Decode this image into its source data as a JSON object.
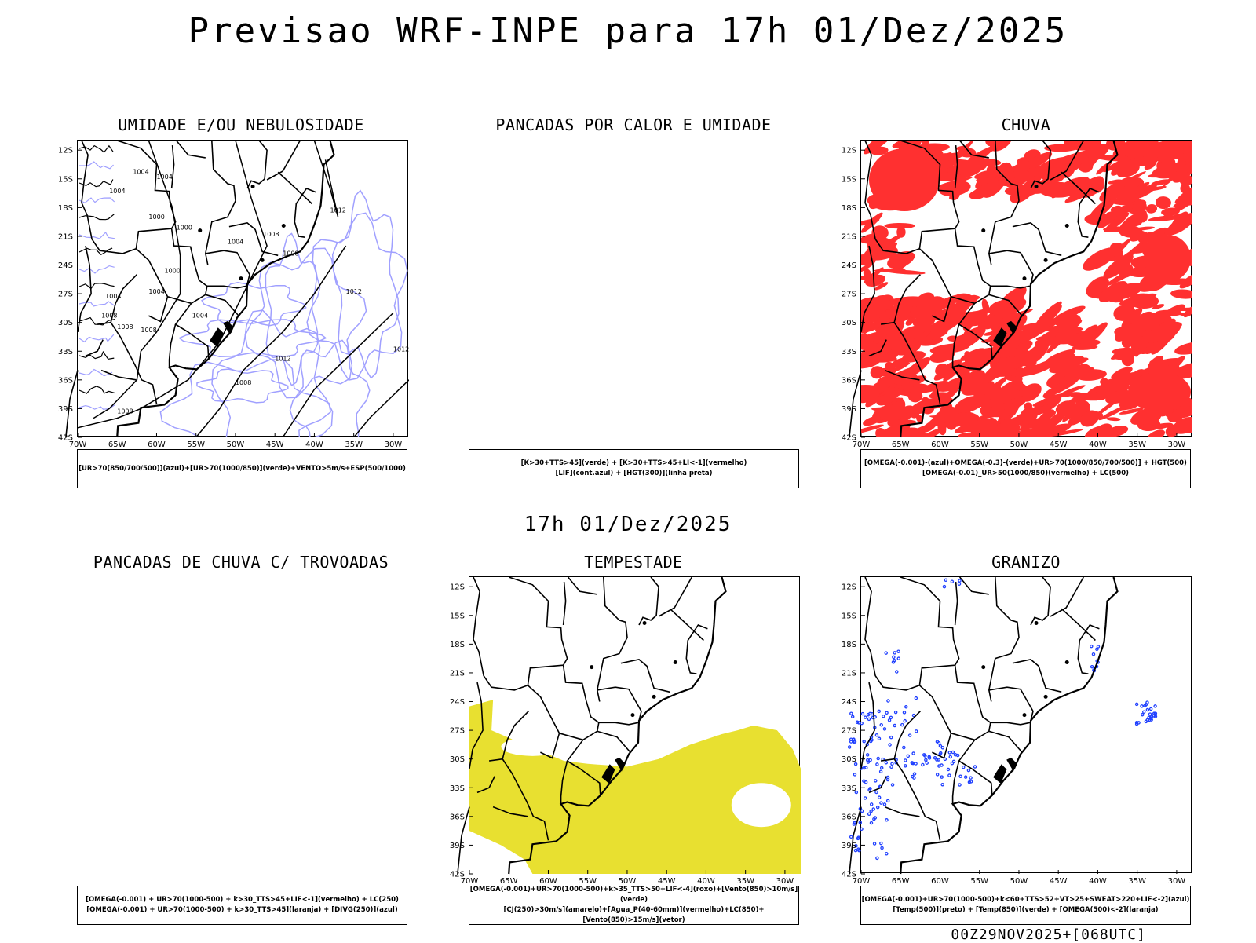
{
  "main_title": "Previsao WRF-INPE  para 17h 01/Dez/2025",
  "center_time": "17h 01/Dez/2025",
  "footer_stamp": "00Z29NOV2025+[068UTC]",
  "axes": {
    "lat_labels": [
      "12S",
      "15S",
      "18S",
      "21S",
      "24S",
      "27S",
      "30S",
      "33S",
      "36S",
      "39S",
      "42S"
    ],
    "lon_labels": [
      "70W",
      "65W",
      "60W",
      "55W",
      "50W",
      "45W",
      "40W",
      "35W",
      "30W"
    ]
  },
  "colors": {
    "pressure_contour": "#000000",
    "humidity_contour": "#a0a0ff",
    "rain": "#ff3030",
    "storm": "#e8e030",
    "hail": "#2040ff"
  },
  "isobar_labels": [
    "1004",
    "1004",
    "1004",
    "1000",
    "1000",
    "1004",
    "1008",
    "1008",
    "1012",
    "1000",
    "1004",
    "1008",
    "1008",
    "1004",
    "1008",
    "1008",
    "1012",
    "1012",
    "1012",
    "1004",
    "1008"
  ],
  "panels": {
    "umidade": {
      "title": "UMIDADE E/OU NEBULOSIDADE",
      "legend": [
        "[UR>70(850/700/500)](azul)+[UR>70(1000/850)](verde)+VENTO>5m/s+ESP(500/1000)"
      ]
    },
    "pancadas_calor": {
      "title": "PANCADAS POR CALOR E UMIDADE",
      "legend": [
        "[K>30+TTS>45](verde) + [K>30+TTS>45+LI<-1](vermelho)",
        "[LIF](cont.azul) + [HGT(300)](linha preta)"
      ]
    },
    "chuva": {
      "title": "CHUVA",
      "legend": [
        "[OMEGA(-0.001)-(azul)+OMEGA(-0.3)-(verde)+UR>70(1000/850/700/500)] + HGT(500)",
        "[OMEGA(-0.01)_UR>50(1000/850)(vermelho) + LC(500)"
      ]
    },
    "trovoadas": {
      "title": "PANCADAS DE CHUVA C/ TROVOADAS",
      "legend": [
        "[OMEGA(-0.001) + UR>70(1000-500) + k>30_TTS>45+LIF<-1](vermelho) + LC(250)",
        "[OMEGA(-0.001) + UR>70(1000-500) + k>30_TTS>45](laranja) + [DIVG(250)](azul)"
      ]
    },
    "tempestade": {
      "title": "TEMPESTADE",
      "legend": [
        "[OMEGA(-0.001)+UR>70(1000-500)+k>35_TTS>50+LIF<-4](roxo)+[Vento(850)>10m/s](verde)",
        "[CJ(250)>30m/s](amarelo)+[Agua_P(40-60mm)](vermelho)+LC(850)+[Vento(850)>15m/s](vetor)"
      ]
    },
    "granizo": {
      "title": "GRANIZO",
      "legend": [
        "[OMEGA(-0.001)+UR>70(1000-500)+k<60+TTS>52+VT>25+SWEAT>220+LIF<-2](azul)",
        "[Temp(500)](preto) + [Temp(850)](verde) + [OMEGA(500)<-2](laranja)"
      ]
    }
  }
}
